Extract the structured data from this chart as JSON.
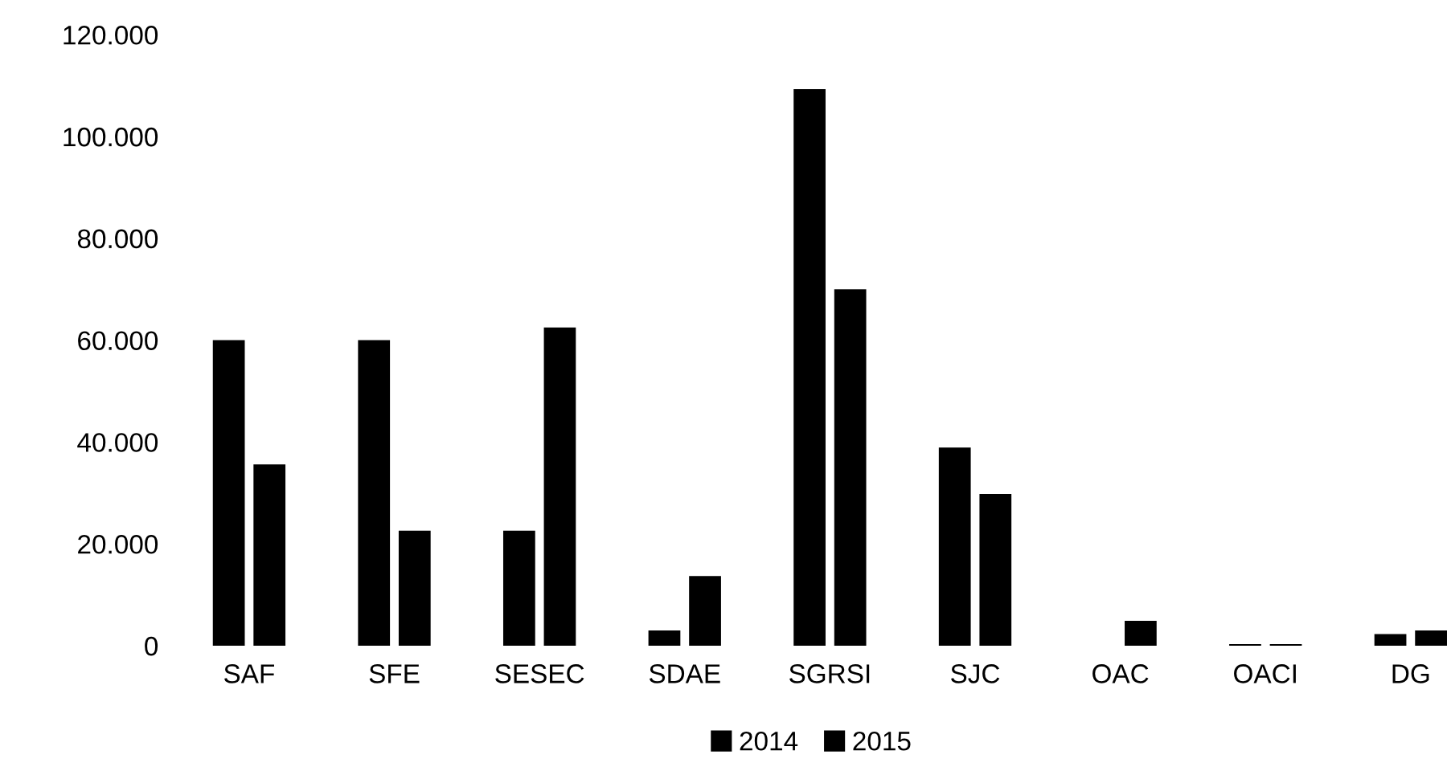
{
  "chart_data": {
    "type": "bar",
    "categories": [
      "SAF",
      "SFE",
      "SESEC",
      "SDAE",
      "SGRSI",
      "SJC",
      "OAC",
      "OACI",
      "DG"
    ],
    "series": [
      {
        "name": "2014",
        "color": "#000000",
        "values": [
          60000,
          60000,
          22600,
          3000,
          109300,
          38900,
          0,
          300,
          2300
        ]
      },
      {
        "name": "2015",
        "color": "#000000",
        "values": [
          35600,
          22600,
          62500,
          13700,
          70000,
          29800,
          4900,
          300,
          3000
        ]
      }
    ],
    "ylim": [
      0,
      120000
    ],
    "yticks": [
      {
        "value": 0,
        "label": "0"
      },
      {
        "value": 20000,
        "label": "20.000"
      },
      {
        "value": 40000,
        "label": "40.000"
      },
      {
        "value": 60000,
        "label": "60.000"
      },
      {
        "value": 80000,
        "label": "80.000"
      },
      {
        "value": 100000,
        "label": "100.000"
      },
      {
        "value": 120000,
        "label": "120.000"
      }
    ],
    "grid": false,
    "legend": "bottom"
  }
}
